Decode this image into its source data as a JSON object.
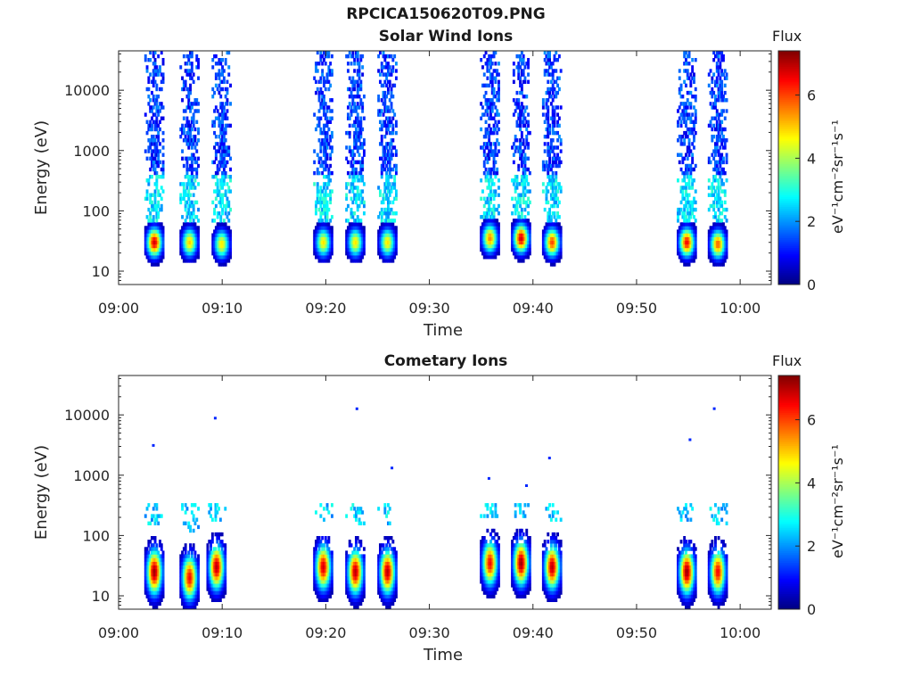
{
  "figure": {
    "title": "RPCICA150620T09.PNG"
  },
  "colorbar": {
    "title": "Flux",
    "label": "eV⁻¹cm⁻²sr⁻¹s⁻¹",
    "ticks": [
      "0",
      "2",
      "4",
      "6"
    ],
    "range": [
      0,
      7.4
    ],
    "colormap": "jet"
  },
  "chart_data": [
    {
      "type": "heatmap",
      "title": "Solar Wind Ions",
      "xlabel": "Time",
      "ylabel": "Energy (eV)",
      "xticks": [
        "09:00",
        "09:10",
        "09:20",
        "09:30",
        "09:40",
        "09:50",
        "10:00"
      ],
      "yticks": [
        "10",
        "100",
        "1000",
        "10000"
      ],
      "x_range_minutes": [
        0,
        63
      ],
      "ylim": [
        6,
        45000
      ],
      "yscale": "log",
      "bursts": [
        {
          "t": 3.5,
          "peak_energy": 30,
          "peak_flux": 6.8
        },
        {
          "t": 6.9,
          "peak_energy": 30,
          "peak_flux": 5.0
        },
        {
          "t": 10.0,
          "peak_energy": 28,
          "peak_flux": 4.8
        },
        {
          "t": 19.8,
          "peak_energy": 30,
          "peak_flux": 4.8
        },
        {
          "t": 22.9,
          "peak_energy": 30,
          "peak_flux": 4.8
        },
        {
          "t": 26.0,
          "peak_energy": 30,
          "peak_flux": 4.8
        },
        {
          "t": 35.9,
          "peak_energy": 35,
          "peak_flux": 5.5
        },
        {
          "t": 38.9,
          "peak_energy": 35,
          "peak_flux": 6.8
        },
        {
          "t": 41.9,
          "peak_energy": 30,
          "peak_flux": 6.0
        },
        {
          "t": 54.9,
          "peak_energy": 30,
          "peak_flux": 6.5
        },
        {
          "t": 57.9,
          "peak_energy": 28,
          "peak_flux": 5.8
        }
      ]
    },
    {
      "type": "heatmap",
      "title": "Cometary Ions",
      "xlabel": "Time",
      "ylabel": "Energy (eV)",
      "xticks": [
        "09:00",
        "09:10",
        "09:20",
        "09:30",
        "09:40",
        "09:50",
        "10:00"
      ],
      "yticks": [
        "10",
        "100",
        "1000",
        "10000"
      ],
      "x_range_minutes": [
        0,
        63
      ],
      "ylim": [
        6,
        45000
      ],
      "yscale": "log",
      "bursts": [
        {
          "t": 3.5,
          "peak_energy": 25,
          "peak_flux": 7.2
        },
        {
          "t": 6.9,
          "peak_energy": 20,
          "peak_flux": 6.5
        },
        {
          "t": 9.5,
          "peak_energy": 30,
          "peak_flux": 7.0
        },
        {
          "t": 19.8,
          "peak_energy": 30,
          "peak_flux": 6.8
        },
        {
          "t": 22.9,
          "peak_energy": 25,
          "peak_flux": 7.0
        },
        {
          "t": 26.0,
          "peak_energy": 25,
          "peak_flux": 7.0
        },
        {
          "t": 35.9,
          "peak_energy": 35,
          "peak_flux": 6.5
        },
        {
          "t": 38.9,
          "peak_energy": 35,
          "peak_flux": 7.2
        },
        {
          "t": 41.9,
          "peak_energy": 30,
          "peak_flux": 7.0
        },
        {
          "t": 54.9,
          "peak_energy": 25,
          "peak_flux": 7.2
        },
        {
          "t": 57.9,
          "peak_energy": 25,
          "peak_flux": 6.5
        }
      ]
    }
  ]
}
